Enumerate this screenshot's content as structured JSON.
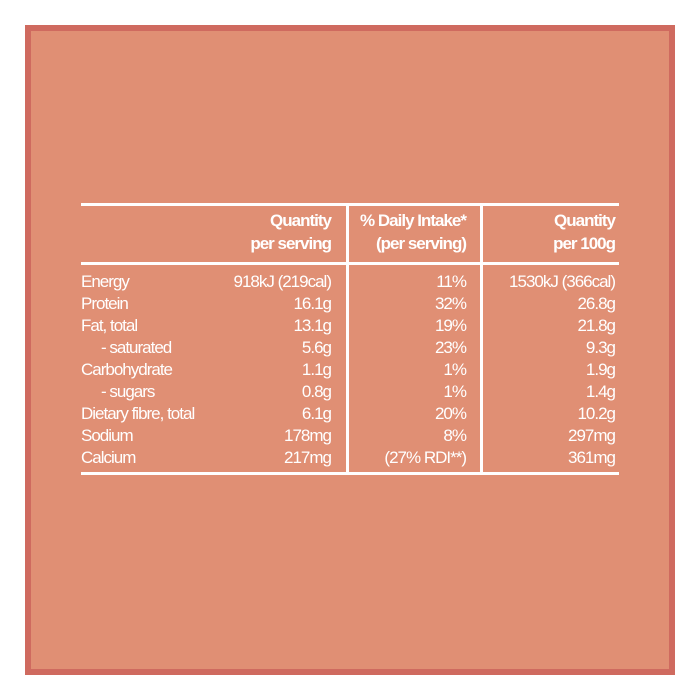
{
  "headers": {
    "per_serving": [
      "Quantity",
      "per serving"
    ],
    "daily_intake": [
      "% Daily Intake*",
      "(per serving)"
    ],
    "per_100g": [
      "Quantity",
      "per 100g"
    ]
  },
  "rows": [
    {
      "name": "Energy",
      "per_serving": "918kJ (219cal)",
      "daily_intake": "11%",
      "per_100g": "1530kJ (366cal)"
    },
    {
      "name": "Protein",
      "per_serving": "16.1g",
      "daily_intake": "32%",
      "per_100g": "26.8g"
    },
    {
      "name": "Fat, total",
      "per_serving": "13.1g",
      "daily_intake": "19%",
      "per_100g": "21.8g"
    },
    {
      "name": "- saturated",
      "per_serving": "5.6g",
      "daily_intake": "23%",
      "per_100g": "9.3g"
    },
    {
      "name": "Carbohydrate",
      "per_serving": "1.1g",
      "daily_intake": "1%",
      "per_100g": "1.9g"
    },
    {
      "name": "- sugars",
      "per_serving": "0.8g",
      "daily_intake": "1%",
      "per_100g": "1.4g"
    },
    {
      "name": "Dietary fibre, total",
      "per_serving": "6.1g",
      "daily_intake": "20%",
      "per_100g": "10.2g"
    },
    {
      "name": "Sodium",
      "per_serving": "178mg",
      "daily_intake": "8%",
      "per_100g": "297mg"
    },
    {
      "name": "Calcium",
      "per_serving": "217mg",
      "daily_intake": "(27% RDI**)",
      "per_100g": "361mg"
    }
  ],
  "colors": {
    "background": "#e08f74",
    "border": "#cf6a5f",
    "text": "#ffffff"
  }
}
